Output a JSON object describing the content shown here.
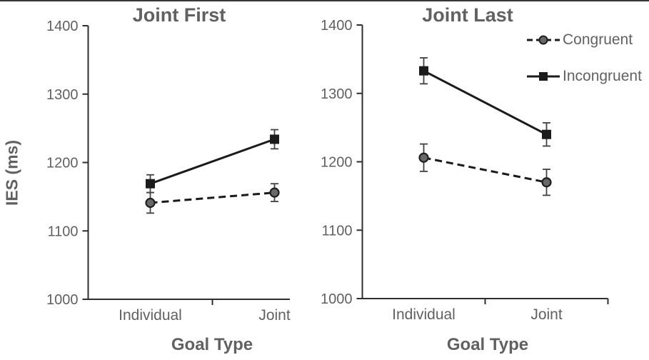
{
  "figure": {
    "y_axis_title": "IES (ms)",
    "x_axis_title": "Goal Type"
  },
  "colors": {
    "background": "#ffffff",
    "text": "#616161",
    "axis": "#2f2f2f",
    "line": "#1b1b1b",
    "congruent_fill": "#686868",
    "marker_stroke": "#1f1f1f",
    "error_bar": "#424242",
    "top_edge_line": "#141414"
  },
  "legend": {
    "position": "top-right",
    "items": [
      {
        "label": "Congruent",
        "marker": "circle",
        "line": "dashed"
      },
      {
        "label": "Incongruent",
        "marker": "square",
        "line": "solid"
      }
    ]
  },
  "chart_data": [
    {
      "type": "line",
      "title": "Joint First",
      "categories": [
        "Individual",
        "Joint"
      ],
      "xlabel": "Goal Type",
      "ylabel": "IES (ms)",
      "ylim": [
        1000,
        1400
      ],
      "yticks": [
        1000,
        1100,
        1200,
        1300,
        1400
      ],
      "grid": false,
      "legend_visible": false,
      "right_edge_clipped": true,
      "series": [
        {
          "name": "Congruent",
          "marker": "circle",
          "line": "dashed",
          "values": [
            1141,
            1156
          ],
          "errors": [
            15,
            13
          ]
        },
        {
          "name": "Incongruent",
          "marker": "square",
          "line": "solid",
          "values": [
            1169,
            1234
          ],
          "errors": [
            13,
            14
          ]
        }
      ]
    },
    {
      "type": "line",
      "title": "Joint Last",
      "categories": [
        "Individual",
        "Joint"
      ],
      "xlabel": "Goal Type",
      "ylabel": "IES (ms)",
      "ylim": [
        1000,
        1400
      ],
      "yticks": [
        1000,
        1100,
        1200,
        1300,
        1400
      ],
      "grid": false,
      "legend_visible": true,
      "right_edge_clipped": false,
      "series": [
        {
          "name": "Congruent",
          "marker": "circle",
          "line": "dashed",
          "values": [
            1206,
            1170
          ],
          "errors": [
            20,
            19
          ]
        },
        {
          "name": "Incongruent",
          "marker": "square",
          "line": "solid",
          "values": [
            1333,
            1240
          ],
          "errors": [
            19,
            17
          ]
        }
      ]
    }
  ]
}
